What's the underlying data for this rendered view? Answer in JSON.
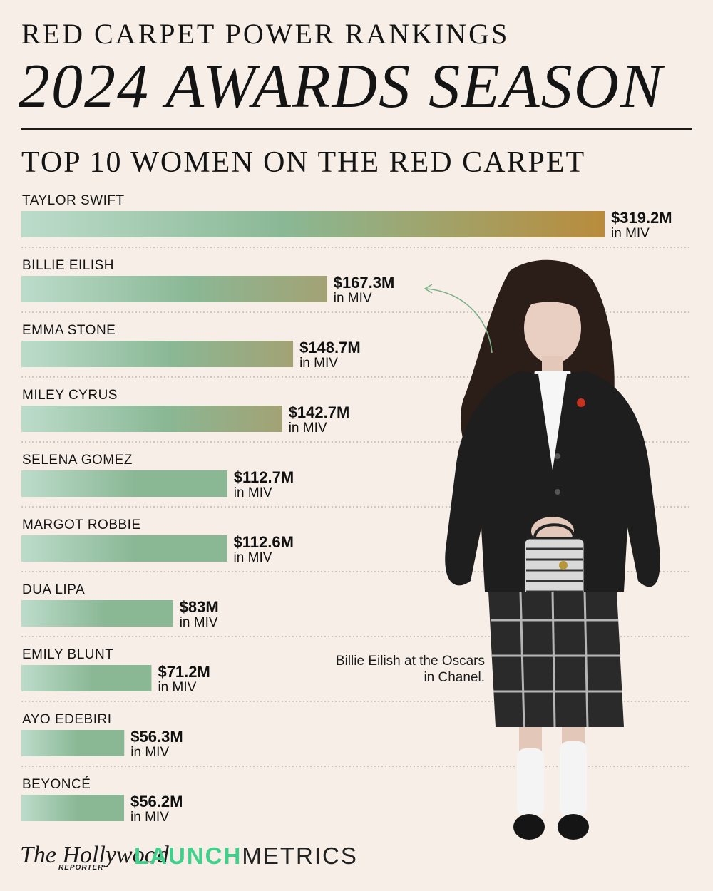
{
  "header": {
    "kicker": "RED CARPET POWER RANKINGS",
    "title": "2024 AWARDS SEASON",
    "subtitle": "TOP 10 WOMEN ON THE RED CARPET"
  },
  "chart_data": {
    "type": "bar",
    "orientation": "horizontal",
    "title": "TOP 10 WOMEN ON THE RED CARPET",
    "categories": [
      "TAYLOR SWIFT",
      "BILLIE EILISH",
      "EMMA STONE",
      "MILEY CYRUS",
      "SELENA GOMEZ",
      "MARGOT ROBBIE",
      "DUA LIPA",
      "EMILY BLUNT",
      "AYO EDEBIRI",
      "BEYONCÉ"
    ],
    "values": [
      319.2,
      167.3,
      148.7,
      142.7,
      112.7,
      112.6,
      83,
      71.2,
      56.3,
      56.2
    ],
    "value_labels": [
      "$319.2M",
      "$167.3M",
      "$148.7M",
      "$142.7M",
      "$112.7M",
      "$112.6M",
      "$83M",
      "$71.2M",
      "$56.3M",
      "$56.2M"
    ],
    "unit_label": "in MIV",
    "grid": false,
    "legend": "none",
    "colors": {
      "bar_start": "#bcdccb",
      "bar_mid": "#8ab895",
      "bar_end": "#b98c3c",
      "divider": "#b7aea4"
    }
  },
  "photo": {
    "caption": "Billie Eilish at the Oscars in Chanel."
  },
  "footer": {
    "logo_thr": "The Hollywood",
    "logo_thr_sub": "REPORTER",
    "logo_launch": "LAUNCH",
    "logo_metrics": "METRICS"
  }
}
